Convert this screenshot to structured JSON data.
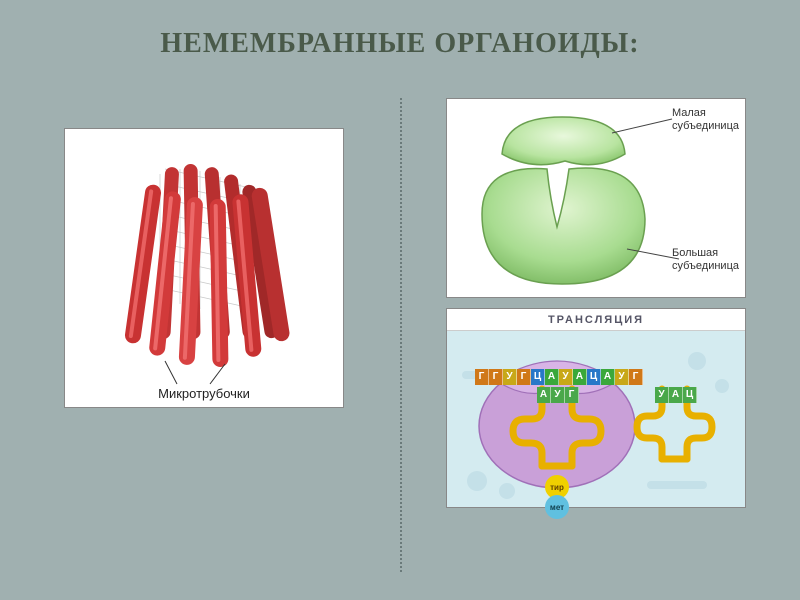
{
  "title": "НЕМЕМБРАННЫЕ ОРГАНОИДЫ:",
  "microtubules": {
    "label": "Микротрубочки",
    "tube_color": "#c83232",
    "tube_highlight": "#e86060",
    "tube_dark": "#a02828",
    "line_color": "#c0c0c0"
  },
  "ribosome": {
    "small_label": "Малая\nсубъединица",
    "large_label": "Большая\nсубъединица",
    "fill_light": "#d4f0c4",
    "fill_mid": "#a8dc90",
    "stroke": "#6aa050"
  },
  "translation": {
    "title": "ТРАНСЛЯЦИЯ",
    "bg": "#d4ebf0",
    "ribosome_fill": "#c9a0d8",
    "ribosome_stroke": "#a070b8",
    "trna_color": "#e8b000",
    "mrna_codons": [
      "Г",
      "Г",
      "У",
      "Г",
      "Ц",
      "А",
      "У",
      "А",
      "Ц",
      "А",
      "У",
      "Г"
    ],
    "codon_colors": {
      "Г": "#d07818",
      "Ц": "#2878c8",
      "А": "#3aa83a",
      "У": "#c8a818"
    },
    "anticodon1": [
      "А",
      "У",
      "Г"
    ],
    "anticodon2": [
      "У",
      "А",
      "Ц"
    ],
    "aa1": {
      "text": "тир",
      "fill": "#f0d000",
      "textcolor": "#604000"
    },
    "aa2": {
      "text": "мет",
      "fill": "#60c0e0",
      "textcolor": "#104050"
    }
  },
  "colors": {
    "slide_bg": "#a0b0b0",
    "title_color": "#4a5a4a"
  }
}
